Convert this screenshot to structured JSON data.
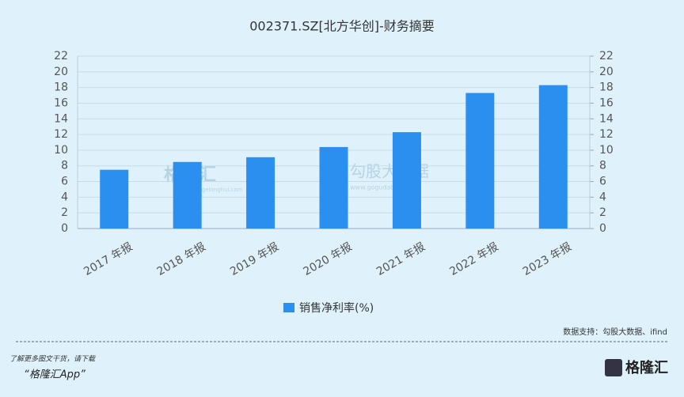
{
  "chart_data": {
    "type": "bar",
    "title": "002371.SZ[北方华创]-财务摘要",
    "categories": [
      "2017 年报",
      "2018 年报",
      "2019 年报",
      "2020 年报",
      "2021 年报",
      "2022 年报",
      "2023 年报"
    ],
    "series": [
      {
        "name": "销售净利率(%)",
        "color": "#2b8ff0",
        "values": [
          7.5,
          8.5,
          9.1,
          10.4,
          12.3,
          17.3,
          18.3
        ]
      }
    ],
    "ylim": [
      0,
      22
    ],
    "yticks": [
      0,
      2,
      4,
      6,
      8,
      10,
      12,
      14,
      16,
      18,
      20,
      22
    ],
    "y2lim": [
      0,
      22
    ],
    "y2ticks": [
      0,
      2,
      4,
      6,
      8,
      10,
      12,
      14,
      16,
      18,
      20,
      22
    ],
    "grid": true,
    "legend": "bottom",
    "source": "数据支持：勾股大数据、ifind",
    "watermarks": [
      "格隆汇",
      "www.gelonghui.com",
      "勾股大数据",
      "www.gogudata.com"
    ]
  },
  "footer": {
    "line1": "了解更多图文干货，请下载",
    "line2": "“格隆汇App”",
    "logo": "格隆汇"
  }
}
